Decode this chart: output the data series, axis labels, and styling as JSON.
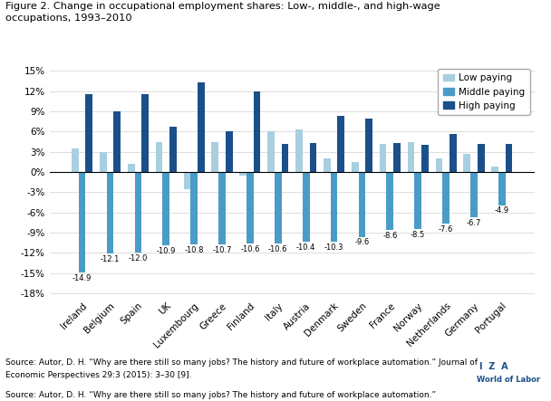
{
  "title": "Figure 2. Change in occupational employment shares: Low-, middle-, and high-wage\noccupations, 1993–2010",
  "countries": [
    "Ireland",
    "Belgium",
    "Spain",
    "UK",
    "Luxembourg",
    "Greece",
    "Finland",
    "Italy",
    "Austria",
    "Denmark",
    "Sweden",
    "France",
    "Norway",
    "Netherlands",
    "Germany",
    "Portugal"
  ],
  "low_paying": [
    3.5,
    3.0,
    1.2,
    4.5,
    -2.5,
    4.5,
    -0.5,
    6.0,
    6.3,
    2.0,
    1.5,
    4.2,
    4.5,
    2.0,
    2.7,
    0.8
  ],
  "middle_paying": [
    -14.9,
    -12.1,
    -12.0,
    -10.9,
    -10.8,
    -10.7,
    -10.6,
    -10.6,
    -10.4,
    -10.3,
    -9.6,
    -8.6,
    -8.5,
    -7.6,
    -6.7,
    -4.9
  ],
  "high_paying": [
    11.5,
    9.0,
    11.5,
    6.7,
    13.3,
    6.0,
    12.0,
    4.2,
    4.3,
    8.3,
    7.9,
    4.3,
    4.0,
    5.7,
    4.2,
    4.2
  ],
  "color_low": "#a8cfe0",
  "color_middle": "#4a9cc7",
  "color_high": "#1b4f8a",
  "background": "#ffffff",
  "yticks": [
    -18,
    -15,
    -12,
    -9,
    -6,
    -3,
    0,
    3,
    6,
    9,
    12,
    15
  ],
  "ylabel_ticks": [
    "-18%",
    "-15%",
    "-12%",
    "-9%",
    "-6%",
    "-3%",
    "0%",
    "3%",
    "6%",
    "9%",
    "12%",
    "15%"
  ],
  "ylim": [
    -18.5,
    16.0
  ],
  "source_italic": "Journal of\nEconomic Perspectives",
  "source_text_before": "Source: Autor, D. H. “Why are there still so many jobs? The history and future of workplace automation.” ",
  "source_text_after": " 29:3 (2015): 3–30 [9].",
  "legend_labels": [
    "Low paying",
    "Middle paying",
    "High paying"
  ],
  "bar_width": 0.25,
  "mid_label_fontsize": 6.0,
  "tick_fontsize": 7.5,
  "ytick_fontsize": 7.5
}
